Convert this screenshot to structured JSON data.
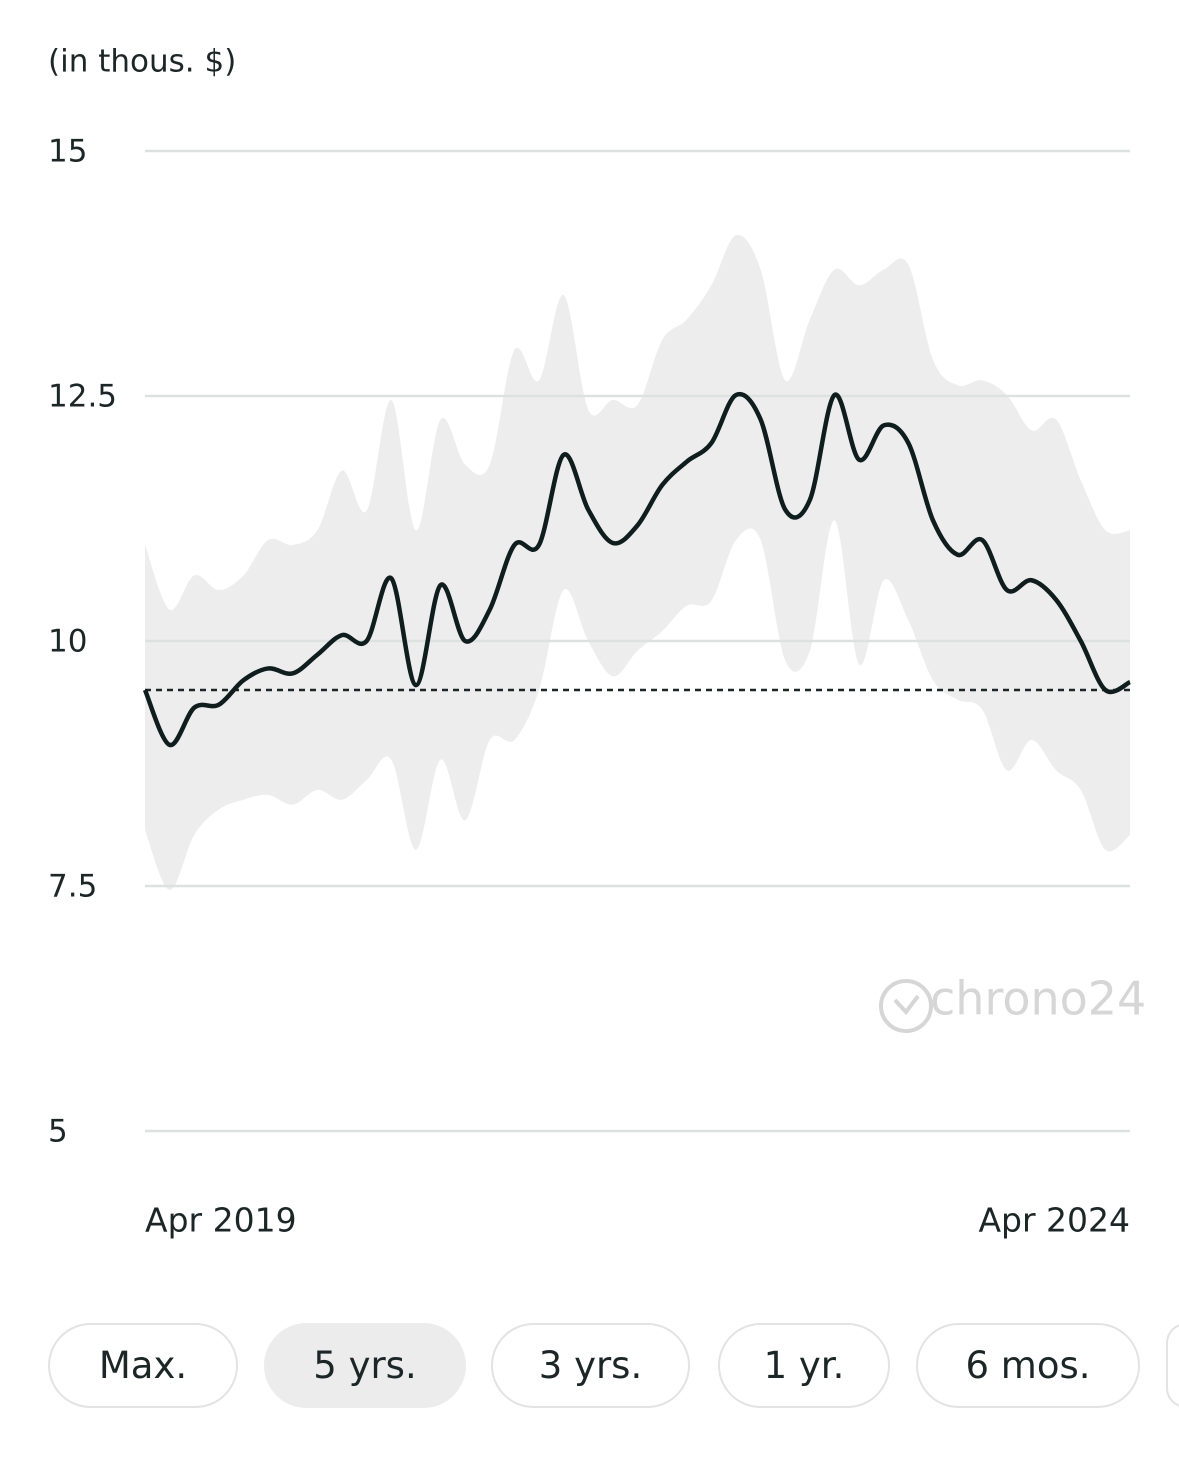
{
  "chart_data": {
    "type": "line",
    "y_label": "(in thous. $)",
    "categories": [
      "Apr 2019",
      null,
      null,
      null,
      null,
      null,
      null,
      null,
      null,
      null,
      null,
      null,
      null,
      null,
      null,
      null,
      null,
      null,
      null,
      null,
      null,
      null,
      null,
      null,
      null,
      null,
      null,
      null,
      null,
      null,
      null,
      null,
      null,
      null,
      null,
      null,
      null,
      null,
      null,
      null,
      "Apr 2024"
    ],
    "values": [
      9.5,
      8.94,
      9.32,
      9.35,
      9.6,
      9.72,
      9.67,
      9.86,
      10.06,
      10.0,
      10.64,
      9.55,
      10.57,
      10.0,
      10.32,
      10.98,
      10.98,
      11.9,
      11.34,
      11.0,
      11.18,
      11.59,
      11.83,
      12.02,
      12.51,
      12.26,
      11.34,
      11.44,
      12.51,
      11.85,
      12.2,
      12.02,
      11.23,
      10.88,
      11.03,
      10.52,
      10.62,
      10.42,
      10.0,
      9.5,
      9.58
    ],
    "band_upper": [
      10.98,
      10.32,
      10.67,
      10.52,
      10.67,
      11.03,
      10.98,
      11.13,
      11.74,
      11.33,
      12.46,
      11.13,
      12.26,
      11.8,
      11.8,
      12.97,
      12.66,
      13.53,
      12.36,
      12.46,
      12.41,
      13.07,
      13.28,
      13.63,
      14.14,
      13.79,
      12.66,
      13.28,
      13.79,
      13.63,
      13.79,
      13.84,
      12.87,
      12.61,
      12.66,
      12.51,
      12.15,
      12.26,
      11.64,
      11.13,
      11.13
    ],
    "band_lower": [
      8.07,
      7.46,
      8.02,
      8.28,
      8.38,
      8.43,
      8.33,
      8.48,
      8.38,
      8.58,
      8.79,
      7.87,
      8.79,
      8.17,
      8.99,
      8.99,
      9.5,
      10.52,
      10.0,
      9.64,
      9.9,
      10.1,
      10.36,
      10.41,
      11.03,
      11.03,
      9.8,
      9.9,
      11.23,
      9.76,
      10.62,
      10.21,
      9.6,
      9.4,
      9.3,
      8.68,
      8.99,
      8.68,
      8.48,
      7.87,
      8.02
    ],
    "reference_line": 9.5,
    "color": "#0f1d1d",
    "band_color": "#eeeded",
    "grid_color": "#dde2e1",
    "ylim": [
      5,
      15
    ],
    "yticks": [
      5,
      7.5,
      10,
      12.5,
      15
    ],
    "grid": true,
    "watermark": "chrono24"
  },
  "buttons": {
    "labels": [
      "Max.",
      "5 yrs.",
      "3 yrs.",
      "1 yr.",
      "6 mos."
    ],
    "selected": 1
  }
}
